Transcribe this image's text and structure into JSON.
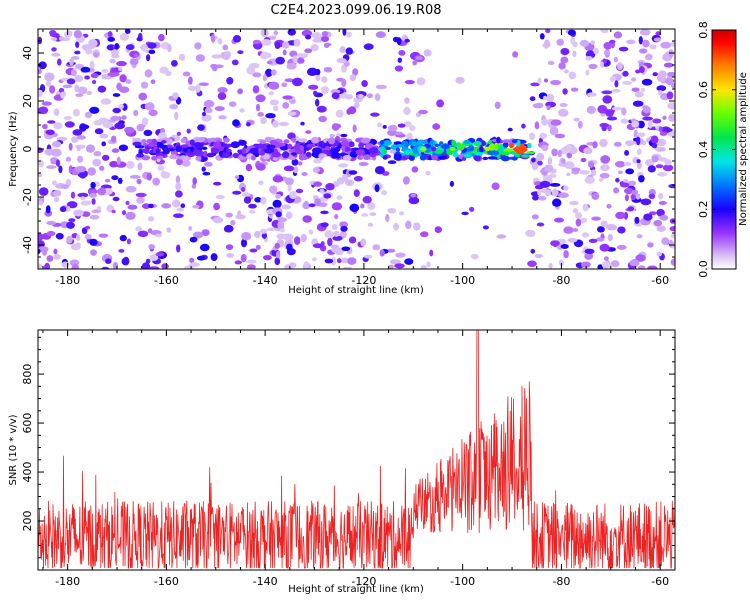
{
  "title": "C2E4.2023.099.06.19.R08",
  "colors": {
    "snr_line": "#ee2222",
    "spectrogram_low": "#d9c8f2",
    "spectrogram_mid": "#7a10e6",
    "spectrogram_high": "#cc0000"
  },
  "chart_data": [
    {
      "type": "heatmap",
      "name": "spectrogram",
      "xlabel": "Height of straight line (km)",
      "ylabel": "Frequency (Hz)",
      "xlim": [
        -186,
        -57
      ],
      "ylim": [
        -50,
        50
      ],
      "x_ticks": [
        -180,
        -160,
        -140,
        -120,
        -100,
        -80,
        -60
      ],
      "x_tick_labels": [
        "-180",
        "-160",
        "-140",
        "-120",
        "-100",
        "-80",
        "-60"
      ],
      "y_ticks": [
        -40,
        -20,
        0,
        20,
        40
      ],
      "y_tick_labels": [
        "-40",
        "-20",
        "0",
        "20",
        "40"
      ],
      "colorbar": {
        "label": "Normalized spectral amplitude",
        "range": [
          0,
          0.8
        ],
        "ticks": [
          0,
          0.2,
          0.4,
          0.6,
          0.8
        ],
        "tick_labels": [
          "0.0",
          "0.2",
          "0.4",
          "0.6",
          "0.8"
        ],
        "colormap": "rainbow"
      },
      "signal_band": {
        "frequency_hz": 0,
        "x_range": [
          -166,
          -86
        ],
        "peak_amplitude": 0.75,
        "peak_x": -89
      },
      "noise_gap_x_range": [
        -107,
        -86
      ]
    },
    {
      "type": "line",
      "name": "snr",
      "xlabel": "Height of straight line (km)",
      "ylabel": "SNR (10 * v/v)",
      "xlim": [
        -186,
        -57
      ],
      "ylim": [
        0,
        980
      ],
      "x_ticks": [
        -180,
        -160,
        -140,
        -120,
        -100,
        -80,
        -60
      ],
      "x_tick_labels": [
        "-180",
        "-160",
        "-140",
        "-120",
        "-100",
        "-80",
        "-60"
      ],
      "y_ticks": [
        200,
        400,
        600,
        800
      ],
      "y_tick_labels": [
        "200",
        "400",
        "600",
        "800"
      ],
      "baseline_snr": 130,
      "noise_amplitude": 170,
      "burst_x_range": [
        -110,
        -86
      ],
      "burst_peak_snr": 980,
      "burst_peak_x": -97
    }
  ]
}
